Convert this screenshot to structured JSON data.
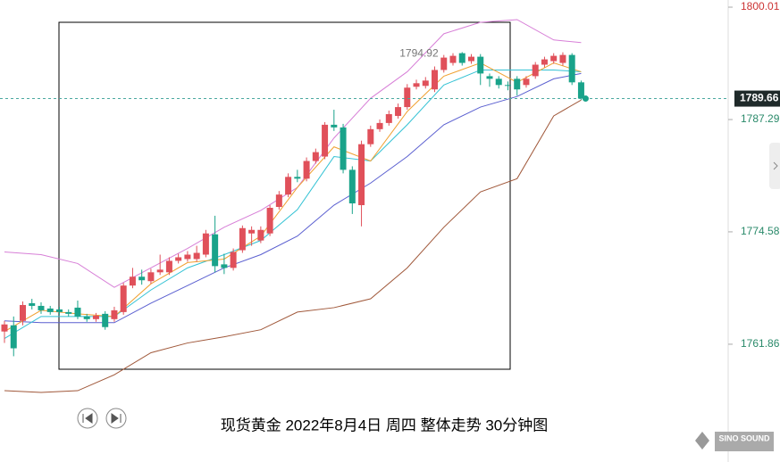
{
  "chart_data": {
    "type": "candlestick",
    "title": "现货黄金 2022年8月4日 周四 整体走势 30分钟图",
    "logo": "SINO SOUND",
    "ylim": [
      1748.53,
      1800.82
    ],
    "yticks": [
      1800.01,
      1787.29,
      1774.58,
      1761.86
    ],
    "last_price": 1789.66,
    "up_color": "#e0505a",
    "down_color": "#19a38a",
    "open": [
      1763.3,
      1764.0,
      1764.5,
      1766.5,
      1766.2,
      1765.9,
      1765.8,
      1765.5,
      1766.0,
      1765.0,
      1764.7,
      1765.3,
      1764.7,
      1765.5,
      1768.5,
      1769.5,
      1769.0,
      1770.0,
      1770.0,
      1771.3,
      1771.5,
      1771.5,
      1772.0,
      1774.3,
      1770.9,
      1770.5,
      1772.5,
      1774.4,
      1773.6,
      1774.4,
      1777.4,
      1778.8,
      1780.8,
      1780.6,
      1782.6,
      1783.1,
      1786.7,
      1786.4,
      1781.6,
      1777.6,
      1784.5,
      1786.2,
      1786.9,
      1787.7,
      1788.7,
      1791.0,
      1791.1,
      1790.7,
      1792.9,
      1793.7,
      1794.8,
      1793.9,
      1794.4,
      1792.2,
      1791.9,
      1791.2,
      1791.9,
      1791.2,
      1792.2,
      1793.5,
      1793.9,
      1793.7,
      1794.6,
      1791.5
    ],
    "high": [
      1764.5,
      1765.0,
      1766.7,
      1767.0,
      1766.6,
      1766.2,
      1766.1,
      1765.8,
      1766.8,
      1765.3,
      1765.4,
      1765.6,
      1766.1,
      1768.8,
      1770.5,
      1770.3,
      1770.4,
      1772.0,
      1771.7,
      1772.1,
      1772.4,
      1773.0,
      1774.8,
      1776.4,
      1772.1,
      1772.7,
      1775.3,
      1775.2,
      1775.2,
      1777.6,
      1779.2,
      1781.2,
      1781.6,
      1783.0,
      1784.0,
      1787.0,
      1788.4,
      1786.8,
      1782.0,
      1784.9,
      1786.6,
      1787.3,
      1788.3,
      1789.1,
      1791.3,
      1791.8,
      1792.1,
      1793.3,
      1794.6,
      1794.8,
      1794.92,
      1794.7,
      1794.7,
      1792.5,
      1792.2,
      1791.6,
      1792.2,
      1792.2,
      1793.8,
      1794.4,
      1794.8,
      1794.9,
      1794.8,
      1791.7
    ],
    "low": [
      1762.0,
      1760.5,
      1764.0,
      1765.8,
      1765.3,
      1765.2,
      1765.2,
      1765.0,
      1764.7,
      1764.4,
      1764.4,
      1763.5,
      1764.4,
      1765.2,
      1768.2,
      1768.6,
      1768.7,
      1769.7,
      1769.7,
      1771.0,
      1771.2,
      1771.2,
      1771.7,
      1770.0,
      1769.8,
      1770.2,
      1772.2,
      1773.0,
      1773.3,
      1774.1,
      1777.1,
      1778.5,
      1780.2,
      1780.3,
      1782.3,
      1782.8,
      1786.0,
      1781.2,
      1776.6,
      1775.2,
      1784.2,
      1785.9,
      1786.6,
      1787.4,
      1788.4,
      1790.7,
      1790.8,
      1790.4,
      1792.6,
      1793.4,
      1793.4,
      1793.6,
      1791.2,
      1791.0,
      1790.8,
      1790.6,
      1790.0,
      1790.9,
      1791.9,
      1793.2,
      1793.6,
      1793.4,
      1791.2,
      1789.5
    ],
    "close": [
      1764.1,
      1761.4,
      1766.3,
      1766.2,
      1765.7,
      1765.5,
      1765.5,
      1765.3,
      1765.0,
      1764.7,
      1765.1,
      1763.8,
      1765.7,
      1768.5,
      1769.5,
      1769.1,
      1770.0,
      1770.3,
      1771.3,
      1771.7,
      1772.0,
      1772.2,
      1774.4,
      1770.7,
      1770.5,
      1772.3,
      1775.0,
      1774.8,
      1774.8,
      1777.3,
      1778.8,
      1780.8,
      1780.6,
      1782.6,
      1783.6,
      1786.7,
      1786.4,
      1781.6,
      1777.8,
      1784.5,
      1786.2,
      1786.9,
      1787.9,
      1788.7,
      1790.9,
      1791.4,
      1791.7,
      1792.9,
      1794.3,
      1794.5,
      1793.7,
      1794.4,
      1792.5,
      1791.9,
      1791.2,
      1791.1,
      1790.7,
      1791.9,
      1793.5,
      1794.1,
      1794.5,
      1794.6,
      1791.5,
      1789.66
    ],
    "lines": [
      {
        "color": "#d77fd7",
        "x": [
          0,
          4,
          8,
          12,
          16,
          20,
          24,
          28,
          32,
          36,
          40,
          44,
          48,
          52,
          56,
          60,
          63
        ],
        "values": [
          1772.3,
          1772.0,
          1771.0,
          1768.3,
          1770.5,
          1772.7,
          1775.1,
          1777.0,
          1779.6,
          1785.2,
          1789.7,
          1792.7,
          1797.0,
          1798.3,
          1798.6,
          1796.3,
          1796.0
        ]
      },
      {
        "color": "#a0583a",
        "x": [
          0,
          4,
          8,
          12,
          16,
          20,
          24,
          28,
          32,
          36,
          40,
          44,
          48,
          52,
          56,
          60,
          63
        ],
        "values": [
          1756.6,
          1756.4,
          1756.6,
          1758.4,
          1760.9,
          1762.0,
          1762.7,
          1763.5,
          1765.5,
          1766.0,
          1767.0,
          1770.5,
          1775.1,
          1779.1,
          1780.6,
          1787.7,
          1789.5
        ]
      },
      {
        "color": "#5a5fd0",
        "x": [
          0,
          4,
          8,
          12,
          16,
          20,
          24,
          28,
          32,
          36,
          40,
          44,
          48,
          52,
          56,
          60,
          63
        ],
        "values": [
          1764.5,
          1764.3,
          1764.3,
          1764.3,
          1766.5,
          1768.5,
          1770.5,
          1772.0,
          1774.1,
          1777.6,
          1780.1,
          1783.1,
          1786.7,
          1788.7,
          1789.9,
          1791.9,
          1792.5
        ]
      },
      {
        "color": "#33c2d4",
        "x": [
          0,
          4,
          8,
          12,
          16,
          20,
          24,
          28,
          32,
          36,
          40,
          44,
          48,
          52,
          56,
          60,
          63
        ],
        "values": [
          1762.5,
          1765.0,
          1765.0,
          1765.0,
          1768.0,
          1770.5,
          1772.0,
          1773.6,
          1777.1,
          1783.1,
          1782.6,
          1786.7,
          1791.2,
          1792.9,
          1792.9,
          1792.9,
          1792.7
        ]
      },
      {
        "color": "#f0a030",
        "x": [
          0,
          4,
          8,
          12,
          16,
          20,
          24,
          28,
          32,
          36,
          40,
          44,
          48,
          52,
          56,
          60,
          63
        ],
        "values": [
          1763.3,
          1765.7,
          1765.3,
          1765.0,
          1768.7,
          1771.1,
          1771.5,
          1774.1,
          1779.6,
          1784.2,
          1782.6,
          1788.2,
          1792.2,
          1793.7,
          1791.5,
          1793.7,
          1792.7
        ]
      }
    ]
  }
}
